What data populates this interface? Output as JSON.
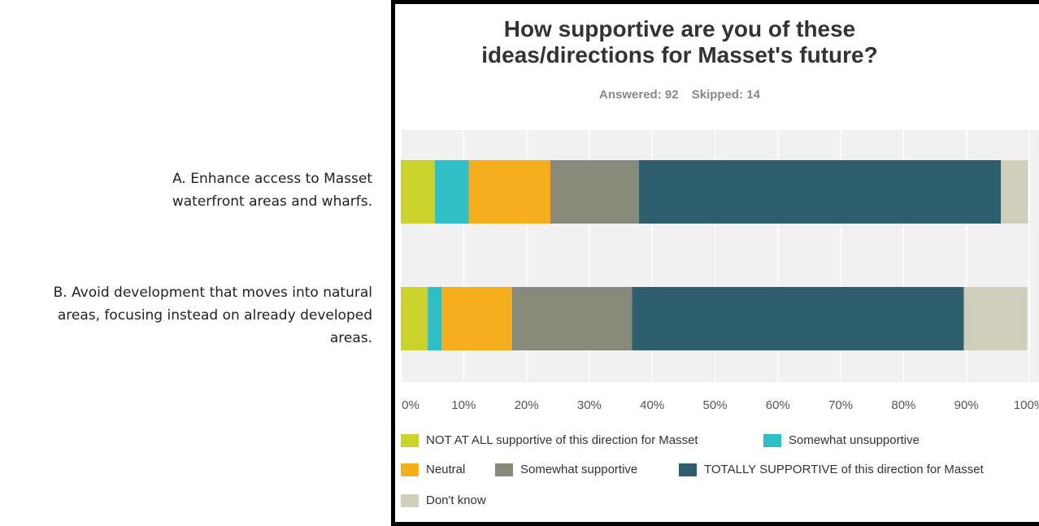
{
  "chart_data": {
    "type": "bar",
    "orientation": "horizontal",
    "stacked": true,
    "title": "How supportive are you of these ideas/directions for Masset's future?",
    "title_lines": [
      "How supportive are you of these",
      "ideas/directions for Masset's future?"
    ],
    "answered": "Answered: 92",
    "skipped": "Skipped: 14",
    "categories": [
      "A. Enhance access to Masset waterfront areas and wharfs.",
      "B. Avoid development that moves into natural areas, focusing instead on already developed areas."
    ],
    "category_lines": [
      [
        "A. Enhance access to Masset",
        "waterfront areas and wharfs."
      ],
      [
        "B. Avoid development that moves into natural",
        "areas, focusing instead on already developed",
        "areas."
      ]
    ],
    "series": [
      {
        "name": "NOT AT ALL supportive of this direction for Masset",
        "color": "#cbd22c",
        "values": [
          5.4,
          4.3
        ]
      },
      {
        "name": "Somewhat unsupportive",
        "color": "#2fbec5",
        "values": [
          5.4,
          2.2
        ]
      },
      {
        "name": "Neutral",
        "color": "#f6ae1f",
        "values": [
          13.0,
          11.2
        ]
      },
      {
        "name": "Somewhat supportive",
        "color": "#878a7a",
        "values": [
          14.1,
          19.1
        ]
      },
      {
        "name": "TOTALLY SUPPORTIVE of this direction for Masset",
        "color": "#2f5f6d",
        "values": [
          57.6,
          52.8
        ]
      },
      {
        "name": "Don't know",
        "color": "#cfcebd",
        "values": [
          4.3,
          10.1
        ]
      }
    ],
    "xlim": [
      0,
      100
    ],
    "xticks": [
      "0%",
      "10%",
      "20%",
      "30%",
      "40%",
      "50%",
      "60%",
      "70%",
      "80%",
      "90%",
      "100%"
    ],
    "grid": true,
    "legend_position": "bottom"
  }
}
